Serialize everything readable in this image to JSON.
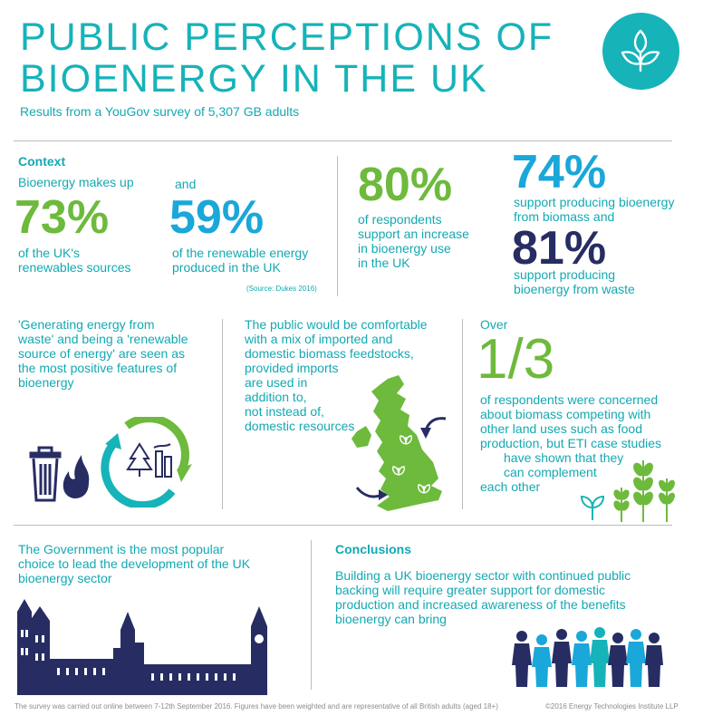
{
  "header": {
    "title_line1": "PUBLIC PERCEPTIONS OF",
    "title_line2": "BIOENERGY IN THE UK",
    "subtitle": "Results from a YouGov survey of 5,307 GB adults",
    "logo_icon": "leaf-icon"
  },
  "context": {
    "heading": "Context",
    "left_intro": "Bioenergy makes up",
    "left_value": "73%",
    "left_desc_1": "of the UK's",
    "left_desc_2": "renewables sources",
    "mid_intro": "and",
    "mid_value": "59%",
    "mid_desc_1": "of the renewable energy",
    "mid_desc_2": "produced in the UK",
    "source": "(Source: Dukes 2016)"
  },
  "support": {
    "value": "80%",
    "desc_1": "of respondents",
    "desc_2": "support an increase",
    "desc_3": "in bioenergy use",
    "desc_4": "in the UK"
  },
  "biomass": {
    "value1": "74%",
    "desc1_1": "support producing bioenergy",
    "desc1_2": "from biomass and",
    "value2": "81%",
    "desc2_1": "support producing",
    "desc2_2": "bioenergy from waste"
  },
  "features": {
    "l1": "'Generating energy from",
    "l2": "waste' and being a 'renewable",
    "l3": "source of energy' are seen as",
    "l4": "the most positive features of",
    "l5": "bioenergy"
  },
  "imports": {
    "l1": "The public would be comfortable",
    "l2": "with a mix of imported and",
    "l3": "domestic biomass feedstocks,",
    "l4": "provided imports",
    "l5": "are used in",
    "l6": "addition to,",
    "l7": "not instead of,",
    "l8": "domestic resources"
  },
  "land": {
    "intro": "Over",
    "value": "1/3",
    "l1": "of respondents were concerned",
    "l2": "about biomass competing with",
    "l3": "other land uses such as food",
    "l4": "production, but ETI case studies",
    "l5": "have shown that they",
    "l6": "can complement",
    "l7": "each other"
  },
  "government": {
    "l1": "The Government is the most popular",
    "l2": "choice to lead the development of the UK",
    "l3": "bioenergy sector"
  },
  "conclusions": {
    "heading": "Conclusions",
    "l1": "Building a UK bioenergy sector with continued public",
    "l2": "backing will require greater support for domestic",
    "l3": "production and increased awareness of the benefits",
    "l4": "bioenergy can bring"
  },
  "footer": {
    "note": "The survey was carried out online between 7-12th September 2016. Figures have been weighted and are representative of all British adults (aged 18+)",
    "copyright": "©2016 Energy Technologies Institute LLP"
  },
  "colors": {
    "teal": "#16b3b9",
    "green": "#6dba3c",
    "blue": "#1aa7d9",
    "navy": "#272d63"
  }
}
